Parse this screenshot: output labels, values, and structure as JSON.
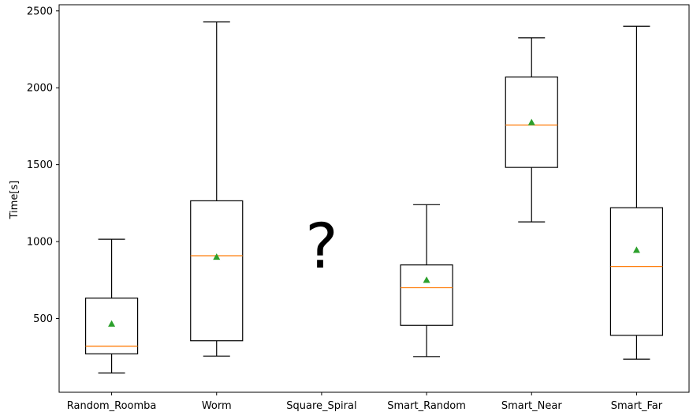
{
  "chart_data": {
    "type": "boxplot",
    "ylabel": "Time[s]",
    "ylim": [
      20,
      2540
    ],
    "yticks": [
      500,
      1000,
      1500,
      2000,
      2500
    ],
    "grid": false,
    "categories": [
      "Random_Roomba",
      "Worm",
      "Square_Spiral",
      "Smart_Random",
      "Smart_Near",
      "Smart_Far"
    ],
    "boxes": [
      {
        "whisker_low": 145,
        "q1": 270,
        "median": 320,
        "q3": 632,
        "whisker_high": 1015,
        "mean": 465
      },
      {
        "whisker_low": 255,
        "q1": 355,
        "median": 908,
        "q3": 1265,
        "whisker_high": 2428,
        "mean": 900
      },
      null,
      {
        "whisker_low": 252,
        "q1": 455,
        "median": 700,
        "q3": 848,
        "whisker_high": 1240,
        "mean": 750
      },
      {
        "whisker_low": 1128,
        "q1": 1482,
        "median": 1758,
        "q3": 2070,
        "whisker_high": 2325,
        "mean": 1775
      },
      {
        "whisker_low": 235,
        "q1": 390,
        "median": 838,
        "q3": 1220,
        "whisker_high": 2400,
        "mean": 945
      }
    ],
    "missing_marker": "?",
    "colors": {
      "box": "#000000",
      "median": "#ff7f0e",
      "mean": "#2ca02c"
    }
  }
}
